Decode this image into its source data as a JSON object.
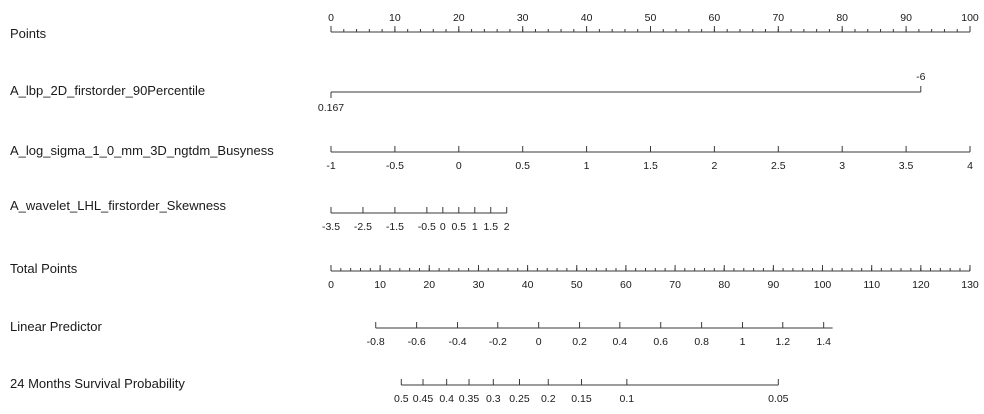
{
  "chart_data": {
    "type": "nomogram",
    "rows": [
      {
        "label": "Points",
        "ticks": [
          {
            "v": 0,
            "label": "0"
          },
          {
            "v": 10,
            "label": "10"
          },
          {
            "v": 20,
            "label": "20"
          },
          {
            "v": 30,
            "label": "30"
          },
          {
            "v": 40,
            "label": "40"
          },
          {
            "v": 50,
            "label": "50"
          },
          {
            "v": 60,
            "label": "60"
          },
          {
            "v": 70,
            "label": "70"
          },
          {
            "v": 80,
            "label": "80"
          },
          {
            "v": 90,
            "label": "90"
          },
          {
            "v": 100,
            "label": "100"
          }
        ],
        "minor_step": 2,
        "range": [
          0,
          100
        ],
        "ticks_up": true,
        "labels_above": true
      },
      {
        "label": "A_lbp_2D_firstorder_90Percentile",
        "ticks": [
          {
            "v": 0.167,
            "points": 0,
            "label": "0.167",
            "position": "below"
          },
          {
            "v": -6,
            "points": 92.3,
            "label": "-6",
            "position": "above"
          }
        ],
        "ticks_up": false
      },
      {
        "label": "A_log_sigma_1_0_mm_3D_ngtdm_Busyness",
        "ticks": [
          {
            "v": -1,
            "points": 0,
            "label": "-1"
          },
          {
            "v": -0.5,
            "points": 10,
            "label": "-0.5"
          },
          {
            "v": 0,
            "points": 20,
            "label": "0"
          },
          {
            "v": 0.5,
            "points": 30,
            "label": "0.5"
          },
          {
            "v": 1,
            "points": 40,
            "label": "1"
          },
          {
            "v": 1.5,
            "points": 50,
            "label": "1.5"
          },
          {
            "v": 2,
            "points": 60,
            "label": "2"
          },
          {
            "v": 2.5,
            "points": 70,
            "label": "2.5"
          },
          {
            "v": 3,
            "points": 80,
            "label": "3"
          },
          {
            "v": 3.5,
            "points": 90,
            "label": "3.5"
          },
          {
            "v": 4,
            "points": 100,
            "label": "4"
          }
        ],
        "ticks_up": true,
        "labels_above": false
      },
      {
        "label": "A_wavelet_LHL_firstorder_Skewness",
        "ticks": [
          {
            "v": -3.5,
            "points": 0,
            "label": "-3.5"
          },
          {
            "v": -2.5,
            "points": 5.0,
            "label": "-2.5"
          },
          {
            "v": -1.5,
            "points": 10.0,
            "label": "-1.5"
          },
          {
            "v": -0.5,
            "points": 15.0,
            "label": "-0.5"
          },
          {
            "v": 0,
            "points": 17.5,
            "label": "0"
          },
          {
            "v": 0.5,
            "points": 20.0,
            "label": "0.5"
          },
          {
            "v": 1,
            "points": 22.5,
            "label": "1"
          },
          {
            "v": 1.5,
            "points": 25.0,
            "label": "1.5"
          },
          {
            "v": 2,
            "points": 27.5,
            "label": "2"
          }
        ],
        "ticks_up": true,
        "labels_above": false
      },
      {
        "label": "Total Points",
        "ticks": [
          {
            "v": 0,
            "points": 0,
            "label": "0"
          },
          {
            "v": 10,
            "points": 7.69,
            "label": "10"
          },
          {
            "v": 20,
            "points": 15.38,
            "label": "20"
          },
          {
            "v": 30,
            "points": 23.08,
            "label": "30"
          },
          {
            "v": 40,
            "points": 30.77,
            "label": "40"
          },
          {
            "v": 50,
            "points": 38.46,
            "label": "50"
          },
          {
            "v": 60,
            "points": 46.15,
            "label": "60"
          },
          {
            "v": 70,
            "points": 53.85,
            "label": "70"
          },
          {
            "v": 80,
            "points": 61.54,
            "label": "80"
          },
          {
            "v": 90,
            "points": 69.23,
            "label": "90"
          },
          {
            "v": 100,
            "points": 76.92,
            "label": "100"
          },
          {
            "v": 110,
            "points": 84.62,
            "label": "110"
          },
          {
            "v": 120,
            "points": 92.31,
            "label": "120"
          },
          {
            "v": 130,
            "points": 100,
            "label": "130"
          }
        ],
        "minor_step_points": 1.538,
        "ticks_up": true,
        "labels_above": false
      },
      {
        "label": "Linear Predictor",
        "ticks": [
          {
            "v": -0.8,
            "points": 7.0,
            "label": "-0.8"
          },
          {
            "v": -0.6,
            "points": 13.4,
            "label": "-0.6"
          },
          {
            "v": -0.4,
            "points": 19.8,
            "label": "-0.4"
          },
          {
            "v": -0.2,
            "points": 26.1,
            "label": "-0.2"
          },
          {
            "v": 0,
            "points": 32.5,
            "label": "0"
          },
          {
            "v": 0.2,
            "points": 38.9,
            "label": "0.2"
          },
          {
            "v": 0.4,
            "points": 45.2,
            "label": "0.4"
          },
          {
            "v": 0.6,
            "points": 51.6,
            "label": "0.6"
          },
          {
            "v": 0.8,
            "points": 58.0,
            "label": "0.8"
          },
          {
            "v": 1,
            "points": 64.4,
            "label": "1"
          },
          {
            "v": 1.2,
            "points": 70.7,
            "label": "1.2"
          },
          {
            "v": 1.4,
            "points": 77.1,
            "label": "1.4"
          }
        ],
        "extent": [
          7.0,
          78.5
        ],
        "ticks_up": true,
        "labels_above": false
      },
      {
        "label": "24 Months Survival Probability",
        "ticks": [
          {
            "v": 0.5,
            "points": 11.0,
            "label": "0.5"
          },
          {
            "v": 0.45,
            "points": 14.4,
            "label": "0.45"
          },
          {
            "v": 0.4,
            "points": 18.1,
            "label": "0.4"
          },
          {
            "v": 0.35,
            "points": 21.6,
            "label": "0.35"
          },
          {
            "v": 0.3,
            "points": 25.4,
            "label": "0.3"
          },
          {
            "v": 0.25,
            "points": 29.5,
            "label": "0.25"
          },
          {
            "v": 0.2,
            "points": 34.0,
            "label": "0.2"
          },
          {
            "v": 0.15,
            "points": 39.2,
            "label": "0.15"
          },
          {
            "v": 0.1,
            "points": 46.3,
            "label": "0.1"
          },
          {
            "v": 0.05,
            "points": 70.0,
            "label": "0.05"
          }
        ],
        "ticks_up": true,
        "labels_above": false
      }
    ]
  }
}
